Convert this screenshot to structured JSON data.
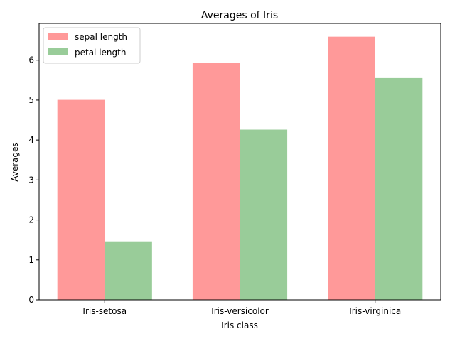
{
  "chart_data": {
    "type": "bar",
    "title": "Averages of Iris",
    "xlabel": "Iris class",
    "ylabel": "Averages",
    "categories": [
      "Iris-setosa",
      "Iris-versicolor",
      "Iris-virginica"
    ],
    "series": [
      {
        "name": "sepal length",
        "values": [
          5.006,
          5.936,
          6.588
        ],
        "color": "#ff9999"
      },
      {
        "name": "petal length",
        "values": [
          1.464,
          4.26,
          5.552
        ],
        "color": "#99cc99"
      }
    ],
    "ylim": [
      0,
      6.92
    ],
    "yticks": [
      "0",
      "1",
      "2",
      "3",
      "4",
      "5",
      "6"
    ],
    "legend_position": "top-left",
    "grid": false
  }
}
